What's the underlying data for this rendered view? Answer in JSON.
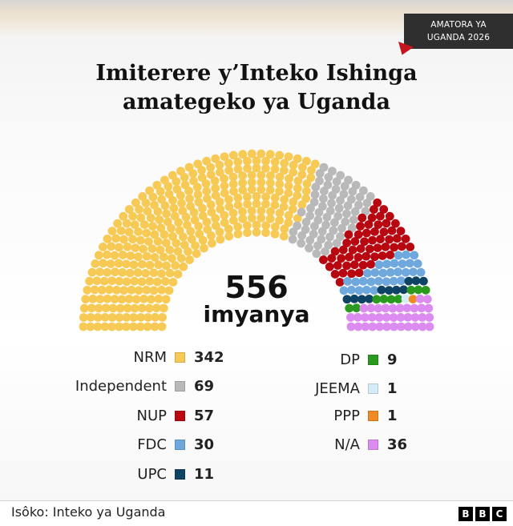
{
  "badge": {
    "line1": "AMATORA YA",
    "line2": "UGANDA 2026"
  },
  "title": {
    "line1": "Imiterere y’Inteko Ishinga",
    "line2": "amategeko ya Uganda"
  },
  "chart_data": {
    "type": "parliament",
    "total": {
      "value": "556",
      "label": "imyanya"
    },
    "parties": [
      {
        "name": "NRM",
        "seats": 342,
        "color": "#f7ca55"
      },
      {
        "name": "Independent",
        "seats": 69,
        "color": "#b9b9b9"
      },
      {
        "name": "NUP",
        "seats": 57,
        "color": "#b80710"
      },
      {
        "name": "FDC",
        "seats": 30,
        "color": "#6ea8dc"
      },
      {
        "name": "UPC",
        "seats": 11,
        "color": "#0e4363"
      },
      {
        "name": "DP",
        "seats": 9,
        "color": "#2a9a1f"
      },
      {
        "name": "JEEMA",
        "seats": 1,
        "color": "#d4ecf7"
      },
      {
        "name": "PPP",
        "seats": 1,
        "color": "#f08a24"
      },
      {
        "name": "N/A",
        "seats": 36,
        "color": "#dc8cf0"
      }
    ]
  },
  "legend": {
    "values": [
      "342",
      "69",
      "57",
      "30",
      "11",
      "9",
      "1",
      "1",
      "36"
    ]
  },
  "footer": {
    "source": "Isôko: Inteko ya Uganda",
    "logo": [
      "B",
      "B",
      "C"
    ]
  }
}
